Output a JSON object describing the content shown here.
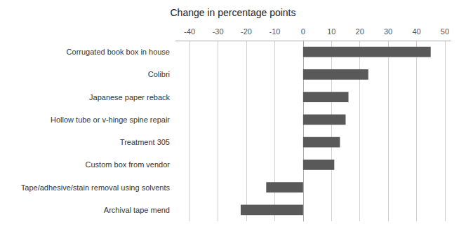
{
  "chart_data": {
    "type": "bar",
    "orientation": "horizontal",
    "title": "Change in percentage points",
    "categories": [
      "Archival tape mend",
      "Tape/adhesive/stain removal using solvents",
      "Custom box from vendor",
      "Treatment 305",
      "Hollow tube or v-hinge spine repair",
      "Japanese paper reback",
      "Colibri",
      "Corrugated book box in house"
    ],
    "values": [
      -22,
      -13,
      11,
      13,
      15,
      16,
      23,
      45
    ],
    "color": "#595959",
    "xlim": [
      -45,
      52
    ],
    "xticks": [
      -40,
      -30,
      -20,
      -10,
      0,
      10,
      20,
      30,
      40,
      50
    ],
    "grid": true
  }
}
